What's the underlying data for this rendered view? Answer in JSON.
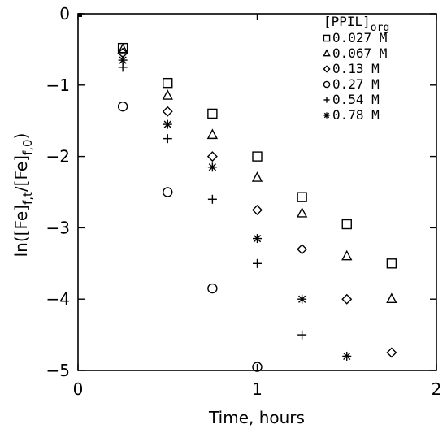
{
  "chart_data": {
    "type": "scatter",
    "xlabel": "Time, hours",
    "ylabel_parts": {
      "a": "ln([Fe]",
      "sub_a": "f,t",
      "b": "/[Fe]",
      "sub_b": "f,0",
      "c": ")"
    },
    "xlim": [
      0,
      2
    ],
    "ylim": [
      -5,
      0
    ],
    "x_ticks": [
      0,
      1,
      2
    ],
    "x_tick_labels": [
      "0",
      "1",
      "2"
    ],
    "y_ticks": [
      0,
      -1,
      -2,
      -3,
      -4,
      -5
    ],
    "y_tick_labels": [
      "0",
      "−1",
      "−2",
      "−3",
      "−4",
      "−5"
    ],
    "grid": false,
    "legend": {
      "title_main": "[PPIL]",
      "title_sub": "org",
      "placement": "top-right"
    },
    "series": [
      {
        "name": "0.027 M",
        "marker": "square",
        "x": [
          0.25,
          0.5,
          0.75,
          1.0,
          1.25,
          1.5,
          1.75
        ],
        "y": [
          -0.48,
          -0.97,
          -1.4,
          -2.0,
          -2.57,
          -2.95,
          -3.5
        ]
      },
      {
        "name": "0.067 M",
        "marker": "triangle",
        "x": [
          0.25,
          0.5,
          0.75,
          1.0,
          1.25,
          1.5,
          1.75
        ],
        "y": [
          -0.5,
          -1.15,
          -1.7,
          -2.3,
          -2.8,
          -3.4,
          -4.0
        ]
      },
      {
        "name": "0.13 M",
        "marker": "diamond",
        "x": [
          0.25,
          0.5,
          0.75,
          1.0,
          1.25,
          1.5,
          1.75
        ],
        "y": [
          -0.55,
          -1.37,
          -2.0,
          -2.75,
          -3.3,
          -4.0,
          -4.75
        ]
      },
      {
        "name": "0.27 M",
        "marker": "circle",
        "x": [
          0.25,
          0.5,
          0.75,
          1.0
        ],
        "y": [
          -1.3,
          -2.5,
          -3.85,
          -4.95
        ]
      },
      {
        "name": "0.54 M",
        "marker": "plus",
        "x": [
          0.25,
          0.5,
          0.75,
          1.0,
          1.25
        ],
        "y": [
          -0.75,
          -1.75,
          -2.6,
          -3.5,
          -4.5
        ]
      },
      {
        "name": "0.78 M",
        "marker": "asterisk",
        "x": [
          0.25,
          0.5,
          0.75,
          1.0,
          1.25,
          1.5
        ],
        "y": [
          -0.65,
          -1.55,
          -2.15,
          -3.15,
          -4.0,
          -4.8
        ]
      }
    ]
  }
}
